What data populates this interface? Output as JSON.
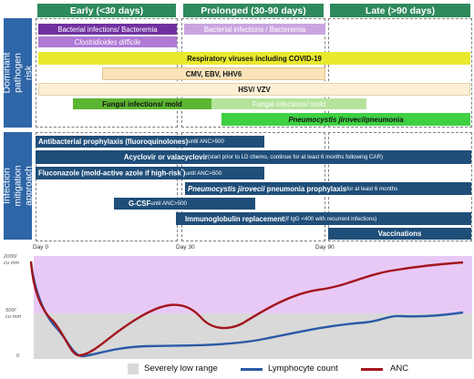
{
  "phases": {
    "early": "Early (<30 days)",
    "prolonged": "Prolonged (30-90 days)",
    "late": "Late (>90 days)"
  },
  "side_labels": {
    "risk": "Dominant pathogen risk",
    "mitigation": "Infection mitigation approach"
  },
  "risk_bars": {
    "bact_early": "Bacterial infections/ Bacteremia",
    "cdiff": "Clostridioides difficile",
    "bact_prolonged": "Bacterial infections / Bacteremia",
    "resp": "Respiratory viruses including COVID-19",
    "cmv": "CMV, EBV, HHV6",
    "hsv": "HSV/ VZV",
    "fungal_early": "Fungal infections/ mold",
    "fungal_prolonged": "Fungal infections/ mold",
    "pcp_main": "Pneumocystis jirovecii",
    "pcp_tail": " pneumonia"
  },
  "mitigation_bars": {
    "antibact_main": "Antibacterial prophylaxis (fluoroquinolones)",
    "antibact_note": " until ANC>500",
    "acyclovir_main": "Acyclovir or valacyclovir",
    "acyclovir_note": " (start prior to LD chemo, continue for at least 6 months following CAR)",
    "fluconazole_main": "Fluconazole (mold-active azole if high-risk",
    "fluconazole_star": "*",
    "fluconazole_close": ")",
    "fluconazole_note": " until ANC>500",
    "pjp_italic": "Pneumocystis jirovecii",
    "pjp_main": " pneumonia prophylaxis",
    "pjp_note": " for at least 6 months",
    "gcsf_main": "G-CSF",
    "gcsf_note": " until ANC>500",
    "ig_main": "Immunoglobulin replacement",
    "ig_note": " (if IgG <400 with recurrent infections)",
    "vaccinations": "Vaccinations"
  },
  "days": {
    "d0": "Day 0",
    "d30": "Day 30",
    "d90": "Day 90"
  },
  "y_axis": {
    "top_value": "2000/",
    "top_unit": "cu mm",
    "mid_value": "500/",
    "mid_unit": "cu mm",
    "zero": "0"
  },
  "legend": {
    "low_range": "Severely low range",
    "lymphocyte": "Lymphocyte count",
    "anc": "ANC"
  },
  "colors": {
    "header_green": "#2e8a5c",
    "side_blue": "#2f66a7",
    "bacterial": "#7030a0",
    "bacterial_light": "#c9a5e0",
    "cdiff": "#b07ad6",
    "respiratory": "#e9e92e",
    "cmv": "#fbe3b9",
    "hsv": "#fdefd6",
    "fungal_dark": "#5cb531",
    "fungal_light": "#b5e39c",
    "pcp": "#3fd043",
    "mitigation": "#1f4e79",
    "low_range": "#d9d9d9",
    "normal_range": "#e8c9f5",
    "lymphocyte": "#2b59a5",
    "anc": "#a3161e"
  }
}
